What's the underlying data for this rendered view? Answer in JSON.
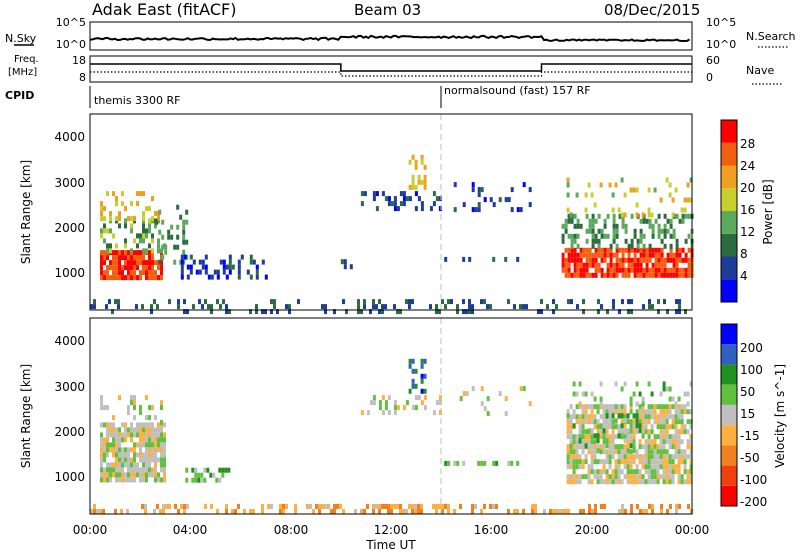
{
  "header": {
    "title": "Adak East (fitACF)",
    "beam": "Beam 03",
    "date": "08/Dec/2015"
  },
  "top_panels": {
    "nsky_label": "N.Sky",
    "nsky_ticks": [
      "10^5",
      "10^0"
    ],
    "nsearch_label": "N.Search",
    "nsearch_ticks": [
      "10^5",
      "10^0"
    ],
    "freq_label_line1": "Freq.",
    "freq_label_line2": "[MHz]",
    "freq_ticks": [
      "18",
      "8"
    ],
    "nave_label": "Nave",
    "nave_ticks": [
      "60",
      "0"
    ],
    "cpid_label": "CPID",
    "cpid_programs": [
      "themis 3300 RF",
      "normalsound (fast) 157 RF"
    ]
  },
  "x_axis": {
    "label": "Time UT",
    "ticks": [
      "00:00",
      "04:00",
      "08:00",
      "12:00",
      "16:00",
      "20:00",
      "00:00"
    ]
  },
  "colors": {
    "background": "#ffffff",
    "ground_scatter": "#c0c0c0",
    "program_change_line": "#bfbfbf"
  },
  "chart_data": [
    {
      "type": "heatmap",
      "name": "power-panel",
      "ylabel": "Slant Range [km]",
      "ylim": [
        180,
        4500
      ],
      "yticks": [
        "4000",
        "3000",
        "2000",
        "1000"
      ],
      "xlim_hours": [
        0,
        24
      ],
      "program_change_hour": 14,
      "colorbar": {
        "label": "Power [dB]",
        "range": [
          0,
          32
        ],
        "ticks": [
          "28",
          "24",
          "20",
          "16",
          "12",
          "8",
          "4"
        ],
        "colors": [
          "#0000ff",
          "#1e3c9a",
          "#2b6b3f",
          "#5ca85c",
          "#c7cf2e",
          "#f0a020",
          "#f06010",
          "#ff0000"
        ]
      },
      "regions": [
        {
          "t": [
            0.4,
            2.8
          ],
          "r": [
            900,
            1500
          ],
          "v": 28,
          "d": 0.85
        },
        {
          "t": [
            0.4,
            3.0
          ],
          "r": [
            1500,
            2200
          ],
          "v": 14,
          "d": 0.4
        },
        {
          "t": [
            0.4,
            2.8
          ],
          "r": [
            2200,
            2800
          ],
          "v": 20,
          "d": 0.28
        },
        {
          "t": [
            2.6,
            3.8
          ],
          "r": [
            1200,
            2500
          ],
          "v": 12,
          "d": 0.25
        },
        {
          "t": [
            3.5,
            7.0
          ],
          "r": [
            900,
            1400
          ],
          "v": 6,
          "d": 0.3
        },
        {
          "t": [
            10.0,
            11.0
          ],
          "r": [
            1150,
            1300
          ],
          "v": 6,
          "d": 0.4
        },
        {
          "t": [
            10.8,
            14.0
          ],
          "r": [
            2400,
            2800
          ],
          "v": 6,
          "d": 0.3
        },
        {
          "t": [
            12.7,
            13.3
          ],
          "r": [
            2900,
            3600
          ],
          "v": 20,
          "d": 0.35
        },
        {
          "t": [
            14.5,
            17.5
          ],
          "r": [
            2400,
            3000
          ],
          "v": 5,
          "d": 0.12
        },
        {
          "t": [
            14.0,
            17.0
          ],
          "r": [
            1250,
            1350
          ],
          "v": 7,
          "d": 0.4
        },
        {
          "t": [
            18.8,
            24.0
          ],
          "r": [
            900,
            1550
          ],
          "v": 28,
          "d": 0.85
        },
        {
          "t": [
            18.8,
            24.0
          ],
          "r": [
            1550,
            2300
          ],
          "v": 12,
          "d": 0.4
        },
        {
          "t": [
            19.0,
            24.0
          ],
          "r": [
            2300,
            3100
          ],
          "v": 18,
          "d": 0.15
        },
        {
          "t": [
            0.0,
            24.0
          ],
          "r": [
            180,
            420
          ],
          "v": 8,
          "d": 0.22
        }
      ]
    },
    {
      "type": "heatmap",
      "name": "velocity-panel",
      "ylabel": "Slant Range [km]",
      "ylim": [
        180,
        4500
      ],
      "yticks": [
        "4000",
        "3000",
        "2000",
        "1000"
      ],
      "xlim_hours": [
        0,
        24
      ],
      "program_change_hour": 14,
      "colorbar": {
        "label": "Velocity [m s^-1]",
        "range": [
          -250,
          250
        ],
        "ticks": [
          "200",
          "100",
          "50",
          "15",
          "-15",
          "-50",
          "-100",
          "-200"
        ],
        "colors": [
          "#ff0000",
          "#f04010",
          "#f08020",
          "#ffb040",
          "#c0c0c0",
          "#60c040",
          "#209020",
          "#3060c0",
          "#0000ff"
        ]
      },
      "regions": [
        {
          "t": [
            0.4,
            3.0
          ],
          "r": [
            900,
            2200
          ],
          "v": 0,
          "d": 0.85
        },
        {
          "t": [
            0.4,
            2.8
          ],
          "r": [
            2200,
            2800
          ],
          "v": 0,
          "d": 0.2
        },
        {
          "t": [
            3.8,
            5.5
          ],
          "r": [
            900,
            1200
          ],
          "v": 60,
          "d": 0.45
        },
        {
          "t": [
            10.8,
            14.0
          ],
          "r": [
            2400,
            2800
          ],
          "v": 0,
          "d": 0.25
        },
        {
          "t": [
            12.7,
            13.3
          ],
          "r": [
            2900,
            3600
          ],
          "v": 150,
          "d": 0.35
        },
        {
          "t": [
            14.0,
            17.0
          ],
          "r": [
            1250,
            1350
          ],
          "v": 60,
          "d": 0.4
        },
        {
          "t": [
            14.5,
            17.5
          ],
          "r": [
            2400,
            3000
          ],
          "v": 0,
          "d": 0.1
        },
        {
          "t": [
            19.0,
            24.0
          ],
          "r": [
            900,
            2600
          ],
          "v": 0,
          "d": 0.8
        },
        {
          "t": [
            19.0,
            22.0
          ],
          "r": [
            1600,
            2400
          ],
          "v": 60,
          "d": 0.2
        },
        {
          "t": [
            19.0,
            24.0
          ],
          "r": [
            2600,
            3100
          ],
          "v": 30,
          "d": 0.15
        },
        {
          "t": [
            0.0,
            24.0
          ],
          "r": [
            180,
            400
          ],
          "v": -70,
          "d": 0.35
        }
      ]
    }
  ]
}
